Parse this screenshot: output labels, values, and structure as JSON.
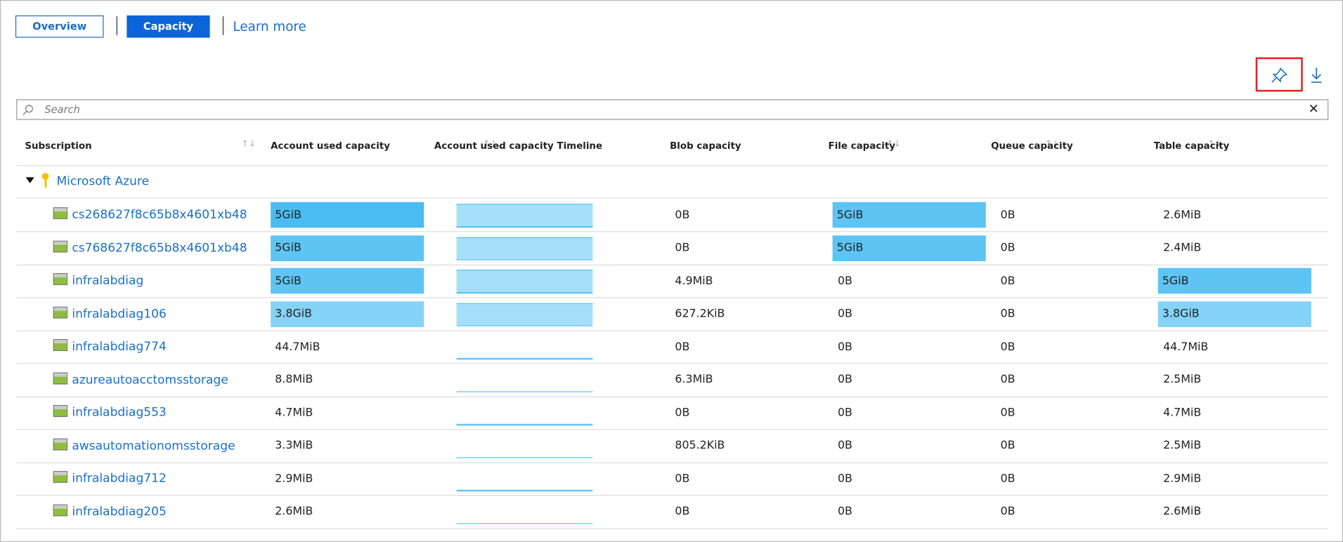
{
  "tabs": [
    "Overview",
    "Capacity"
  ],
  "learn_more": "Learn more",
  "search_placeholder": "Search",
  "table": {
    "headers": [
      "Subscription",
      "Account used capacity",
      "Account used capacity Timeline",
      "Blob capacity",
      "File capacity",
      "Queue capacity",
      "Table capacity"
    ],
    "group": "Microsoft Azure",
    "rows": [
      {
        "cells": [
          "cs268627f8c65b8x4601xb48",
          "5GiB",
          null,
          "0B",
          "5GiB",
          "0B",
          "2.6MiB"
        ],
        "fills": [
          null,
          "#4bbcf2",
          "#a6dffa",
          null,
          "#5ec4f3",
          null,
          null
        ]
      },
      {
        "cells": [
          "cs768627f8c65b8x4601xb48",
          "5GiB",
          null,
          "0B",
          "5GiB",
          "0B",
          "2.4MiB"
        ],
        "fills": [
          null,
          "#5ec4f3",
          "#a6dffa",
          null,
          "#5ec4f3",
          null,
          null
        ]
      },
      {
        "cells": [
          "infralabdiag",
          "5GiB",
          null,
          "4.9MiB",
          "0B",
          "0B",
          "5GiB"
        ],
        "fills": [
          null,
          "#5ec4f3",
          "#a6dffa",
          null,
          null,
          null,
          "#5ec4f3"
        ]
      },
      {
        "cells": [
          "infralabdiag106",
          "3.8GiB",
          null,
          "627.2KiB",
          "0B",
          "0B",
          "3.8GiB"
        ],
        "fills": [
          null,
          "#85d3f7",
          "#a6dffa",
          null,
          null,
          null,
          "#85d3f7"
        ]
      },
      {
        "cells": [
          "infralabdiag774",
          "44.7MiB",
          null,
          "0B",
          "0B",
          "0B",
          "44.7MiB"
        ],
        "fills": [
          null,
          null,
          null,
          null,
          null,
          null,
          null
        ]
      },
      {
        "cells": [
          "azureautoacctomsstorage",
          "8.8MiB",
          null,
          "6.3MiB",
          "0B",
          "0B",
          "2.5MiB"
        ],
        "fills": [
          null,
          null,
          null,
          null,
          null,
          null,
          null
        ]
      },
      {
        "cells": [
          "infralabdiag553",
          "4.7MiB",
          null,
          "0B",
          "0B",
          "0B",
          "4.7MiB"
        ],
        "fills": [
          null,
          null,
          null,
          null,
          null,
          null,
          null
        ]
      },
      {
        "cells": [
          "awsautomationomsstorage",
          "3.3MiB",
          null,
          "805.2KiB",
          "0B",
          "0B",
          "2.5MiB"
        ],
        "fills": [
          null,
          null,
          null,
          null,
          null,
          null,
          null
        ]
      },
      {
        "cells": [
          "infralabdiag712",
          "2.9MiB",
          null,
          "0B",
          "0B",
          "0B",
          "2.9MiB"
        ],
        "fills": [
          null,
          null,
          null,
          null,
          null,
          null,
          null
        ]
      },
      {
        "cells": [
          "infralabdiag205",
          "2.6MiB",
          null,
          "0B",
          "0B",
          "0B",
          "2.6MiB"
        ],
        "fills": [
          null,
          null,
          null,
          null,
          null,
          null,
          null
        ]
      }
    ]
  }
}
